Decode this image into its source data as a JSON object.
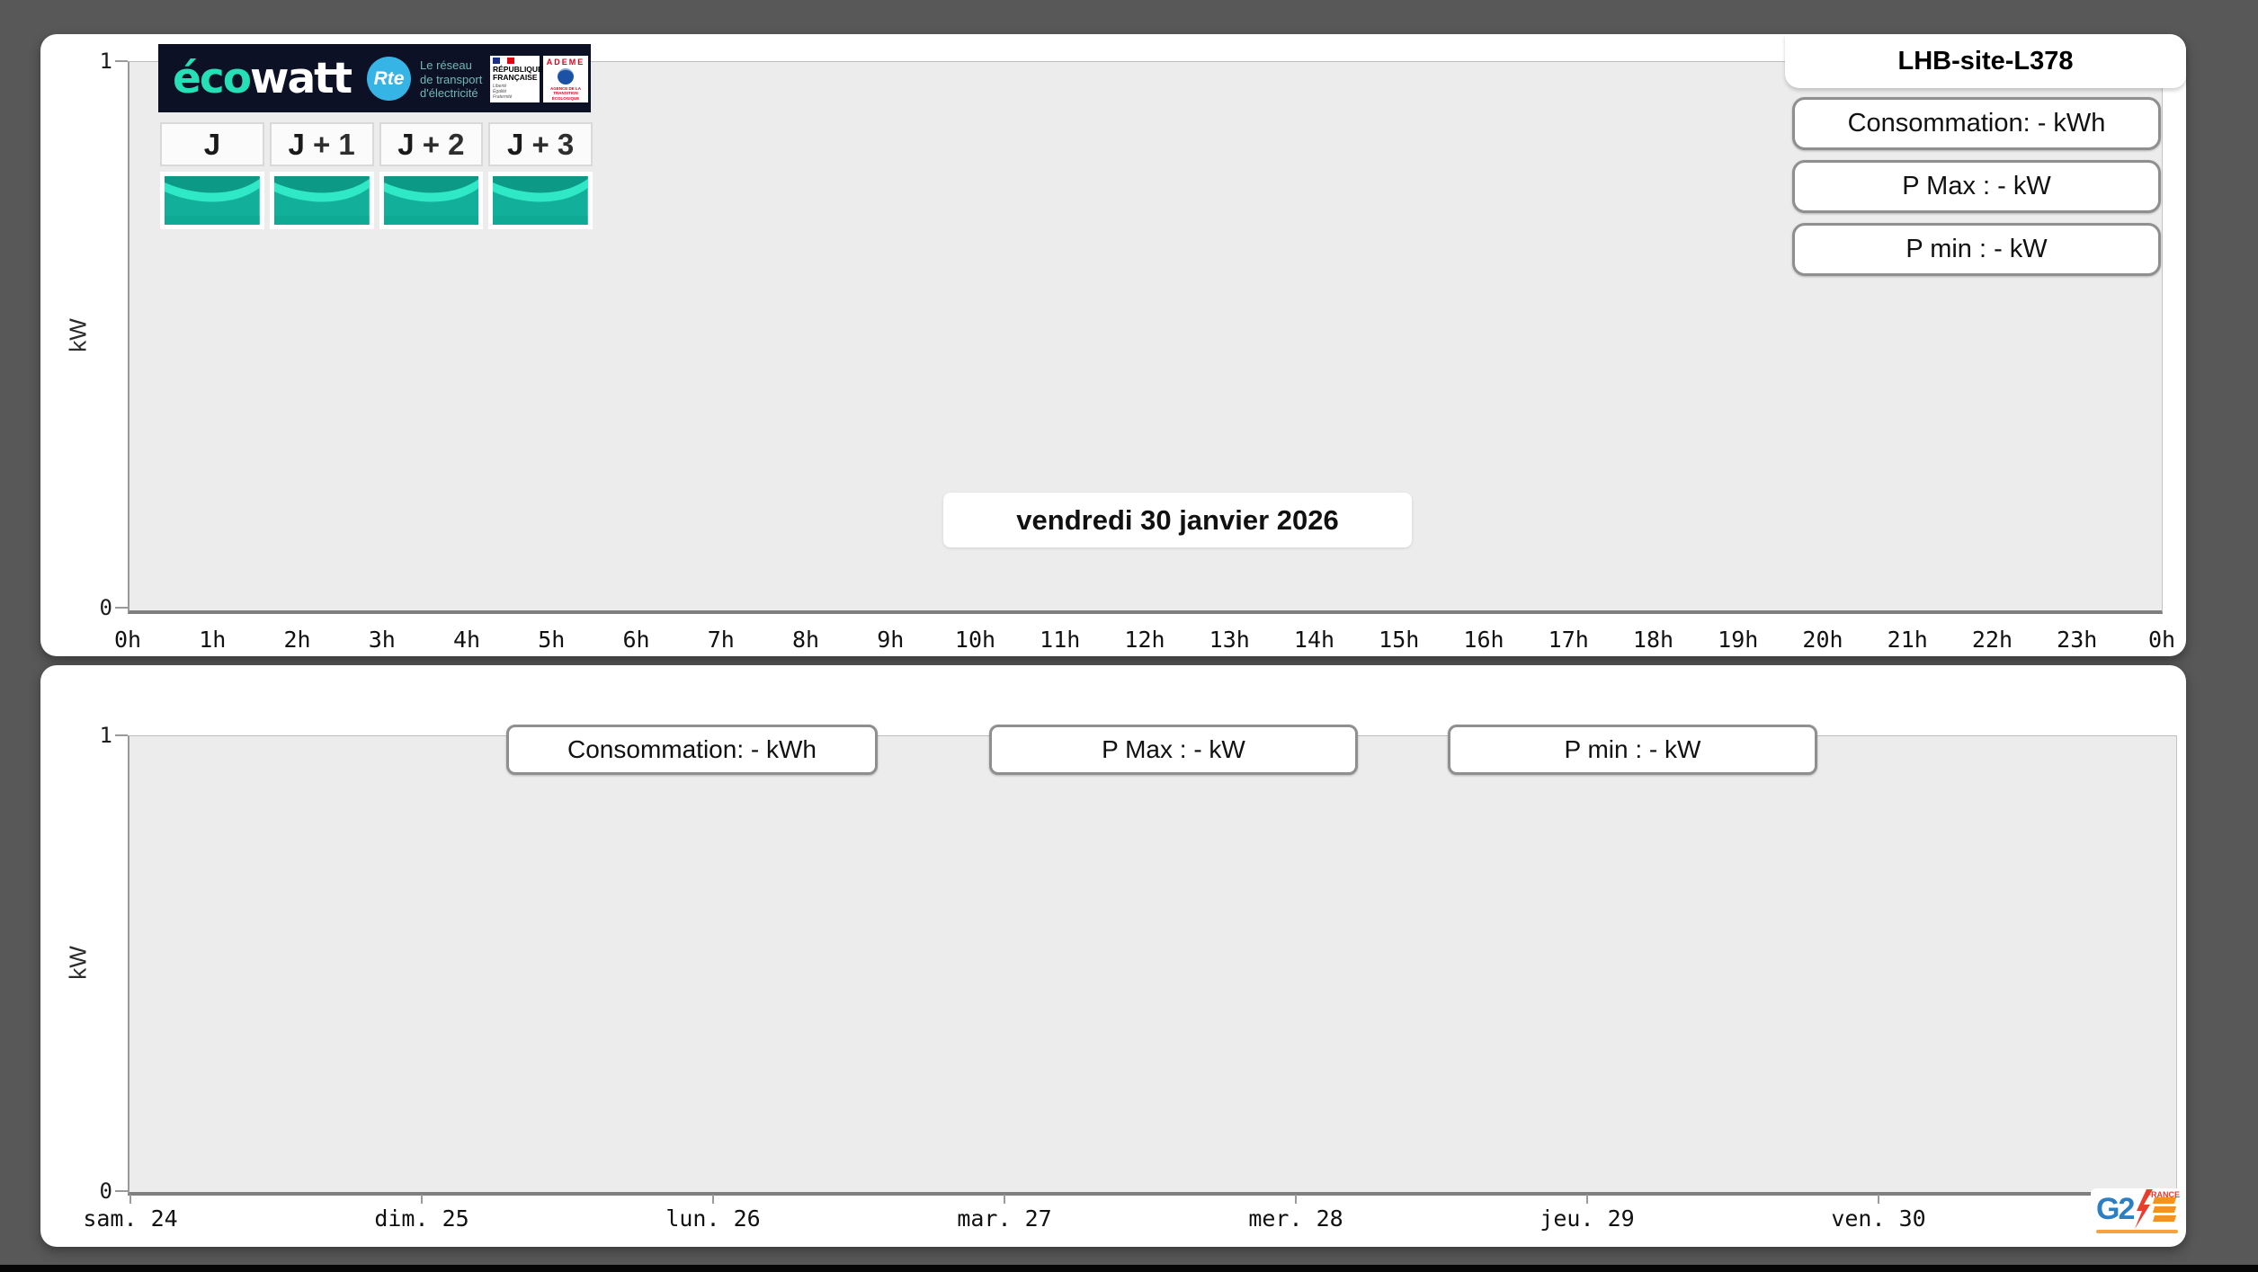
{
  "colors": {
    "bg": "#585858",
    "plotbg": "#ececec",
    "navy": "#0d1126",
    "teal-bright": "#25dfb6",
    "rte-blue": "#35b4e5",
    "ademe-blue": "#1b52a5",
    "ecowatt-green-dark": "#0c9a87",
    "ecowatt-green": "#12b09a",
    "ecowatt-green-light": "#2fe9c6",
    "g2e-blue": "#2b7fc2",
    "g2e-orange": "#f6921e",
    "g2e-red": "#e23a2c"
  },
  "top_panel": {
    "site_title": "LHB-site-L378",
    "date_banner": "vendredi 30 janvier 2026",
    "stats": [
      "Consommation: - kWh",
      "P Max :  - kW",
      "P min : - kW"
    ],
    "y_axis_label": "kW",
    "y_ticks": [
      "1",
      "0"
    ],
    "x_ticks": [
      "0h",
      "1h",
      "2h",
      "3h",
      "4h",
      "5h",
      "6h",
      "7h",
      "8h",
      "9h",
      "10h",
      "11h",
      "12h",
      "13h",
      "14h",
      "15h",
      "16h",
      "17h",
      "18h",
      "19h",
      "20h",
      "21h",
      "22h",
      "23h",
      "0h"
    ],
    "ecowatt": {
      "brand": {
        "eco": "éco",
        "watt": "watt"
      },
      "rte": {
        "badge": "Rte",
        "tagline_lines": [
          "Le réseau",
          "de transport",
          "d'électricité"
        ]
      },
      "republique": {
        "name_lines": [
          "RÉPUBLIQUE",
          "FRANÇAISE"
        ],
        "motto_lines": [
          "Liberté",
          "Égalité",
          "Fraternité"
        ]
      },
      "ademe": {
        "name": "ADEME",
        "tagline": "AGENCE DE LA TRANSITION ÉCOLOGIQUE"
      },
      "day_tabs": [
        {
          "prefix": "J",
          "suffix": ""
        },
        {
          "prefix": "J",
          "suffix": " + 1"
        },
        {
          "prefix": "J",
          "suffix": " + 2"
        },
        {
          "prefix": "J",
          "suffix": " + 3"
        }
      ]
    }
  },
  "bottom_panel": {
    "stats": [
      "Consommation: - kWh",
      "P Max :  - kW",
      "P min : - kW"
    ],
    "y_axis_label": "kW",
    "y_ticks": [
      "1",
      "0"
    ],
    "x_ticks": [
      "sam. 24",
      "dim. 25",
      "lun. 26",
      "mar. 27",
      "mer. 28",
      "jeu. 29",
      "ven. 30"
    ],
    "g2e": {
      "g2": "G2",
      "e_label": "E",
      "france": "FRANCE"
    }
  },
  "chart_data": [
    {
      "type": "line",
      "title": "",
      "xlabel": "",
      "ylabel": "kW",
      "ylim": [
        0,
        1
      ],
      "x_tick_labels": [
        "0h",
        "1h",
        "2h",
        "3h",
        "4h",
        "5h",
        "6h",
        "7h",
        "8h",
        "9h",
        "10h",
        "11h",
        "12h",
        "13h",
        "14h",
        "15h",
        "16h",
        "17h",
        "18h",
        "19h",
        "20h",
        "21h",
        "22h",
        "23h",
        "0h"
      ],
      "series": [],
      "grid": false,
      "annotations": [
        "vendredi 30 janvier 2026",
        "Consommation: - kWh",
        "P Max :  - kW",
        "P min : - kW",
        "LHB-site-L378"
      ]
    },
    {
      "type": "line",
      "title": "",
      "xlabel": "",
      "ylabel": "kW",
      "ylim": [
        0,
        1
      ],
      "x_tick_labels": [
        "sam. 24",
        "dim. 25",
        "lun. 26",
        "mar. 27",
        "mer. 28",
        "jeu. 29",
        "ven. 30"
      ],
      "series": [],
      "grid": false,
      "annotations": [
        "Consommation: - kWh",
        "P Max :  - kW",
        "P min : - kW"
      ]
    }
  ]
}
